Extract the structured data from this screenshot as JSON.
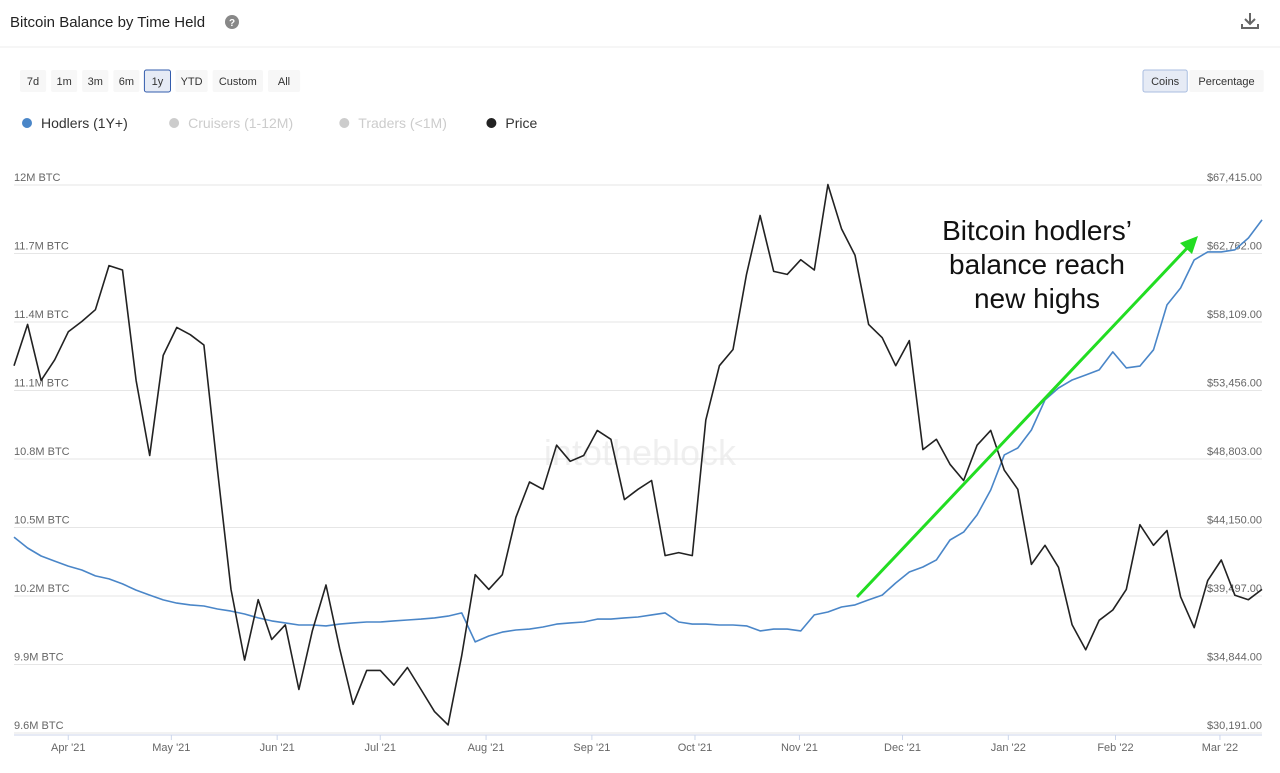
{
  "header": {
    "title": "Bitcoin Balance by Time Held"
  },
  "range_buttons": [
    {
      "label": "7d"
    },
    {
      "label": "1m"
    },
    {
      "label": "3m"
    },
    {
      "label": "6m"
    },
    {
      "label": "1y",
      "active": true
    },
    {
      "label": "YTD"
    },
    {
      "label": "Custom"
    },
    {
      "label": "All"
    }
  ],
  "unit_toggle": [
    {
      "label": "Coins",
      "active": true
    },
    {
      "label": "Percentage"
    }
  ],
  "chart_data": {
    "type": "line",
    "watermark": "intotheblock",
    "annotation": {
      "lines": [
        "Bitcoin hodlers’",
        "balance reach",
        "new highs"
      ]
    },
    "xlim": [
      0,
      92
    ],
    "xticks": [
      {
        "value": 4,
        "label": "Apr '21"
      },
      {
        "value": 11.6,
        "label": "May '21"
      },
      {
        "value": 19.4,
        "label": "Jun '21"
      },
      {
        "value": 27,
        "label": "Jul '21"
      },
      {
        "value": 34.8,
        "label": "Aug '21"
      },
      {
        "value": 42.6,
        "label": "Sep '21"
      },
      {
        "value": 50.2,
        "label": "Oct '21"
      },
      {
        "value": 57.9,
        "label": "Nov '21"
      },
      {
        "value": 65.5,
        "label": "Dec '21"
      },
      {
        "value": 73.3,
        "label": "Jan '22"
      },
      {
        "value": 81.2,
        "label": "Feb '22"
      },
      {
        "value": 88.9,
        "label": "Mar '22"
      }
    ],
    "ylim": [
      9600000,
      12000000
    ],
    "yticks": [
      {
        "value": 9600000,
        "label": "9.6M BTC"
      },
      {
        "value": 9900000,
        "label": "9.9M BTC"
      },
      {
        "value": 10200000,
        "label": "10.2M BTC"
      },
      {
        "value": 10500000,
        "label": "10.5M BTC"
      },
      {
        "value": 10800000,
        "label": "10.8M BTC"
      },
      {
        "value": 11100000,
        "label": "11.1M BTC"
      },
      {
        "value": 11400000,
        "label": "11.4M BTC"
      },
      {
        "value": 11700000,
        "label": "11.7M BTC"
      },
      {
        "value": 12000000,
        "label": "12M BTC"
      }
    ],
    "y2lim": [
      30191,
      67415
    ],
    "y2ticks": [
      {
        "value": 30191,
        "label": "$30,191.00"
      },
      {
        "value": 34844,
        "label": "$34,844.00"
      },
      {
        "value": 39497,
        "label": "$39,497.00"
      },
      {
        "value": 44150,
        "label": "$44,150.00"
      },
      {
        "value": 48803,
        "label": "$48,803.00"
      },
      {
        "value": 53456,
        "label": "$53,456.00"
      },
      {
        "value": 58109,
        "label": "$58,109.00"
      },
      {
        "value": 62762,
        "label": "$62,762.00"
      },
      {
        "value": 67415,
        "label": "$67,415.00"
      }
    ],
    "grid": true,
    "series": [
      {
        "name": "Hodlers (1Y+)",
        "color": "#4a86c8",
        "visible": true,
        "values": [
          10423000,
          10375000,
          10340000,
          10318000,
          10296000,
          10279000,
          10253000,
          10240000,
          10218000,
          10191000,
          10169000,
          10148000,
          10134000,
          10126000,
          10121000,
          10108000,
          10099000,
          10086000,
          10069000,
          10056000,
          10047000,
          10038000,
          10038000,
          10034000,
          10042000,
          10047000,
          10051000,
          10051000,
          10056000,
          10060000,
          10064000,
          10069000,
          10077000,
          10091000,
          9964000,
          9990000,
          10007000,
          10016000,
          10020000,
          10029000,
          10042000,
          10047000,
          10051000,
          10064000,
          10064000,
          10069000,
          10073000,
          10082000,
          10091000,
          10051000,
          10042000,
          10042000,
          10038000,
          10038000,
          10034000,
          10012000,
          10020000,
          10020000,
          10012000,
          10082000,
          10095000,
          10117000,
          10126000,
          10148000,
          10169000,
          10222000,
          10270000,
          10292000,
          10323000,
          10410000,
          10445000,
          10520000,
          10629000,
          10783000,
          10813000,
          10892000,
          11024000,
          11076000,
          11111000,
          11133000,
          11155000,
          11234000,
          11164000,
          11172000,
          11243000,
          11440000,
          11514000,
          11637000,
          11672000,
          11672000,
          11681000,
          11733000,
          11812000
        ]
      },
      {
        "name": "Cruisers (1-12M)",
        "color": "#cccccc",
        "visible": false
      },
      {
        "name": "Traders (<1M)",
        "color": "#cccccc",
        "visible": false
      },
      {
        "name": "Price",
        "color": "#222222",
        "visible": true,
        "axis": "y2",
        "values": [
          54600,
          57400,
          53600,
          55000,
          56900,
          57600,
          58400,
          61400,
          61100,
          53600,
          48500,
          55300,
          57200,
          56700,
          56000,
          47500,
          39400,
          34600,
          38700,
          36000,
          37000,
          32600,
          36600,
          39700,
          35400,
          31600,
          33900,
          33900,
          32900,
          34100,
          32600,
          31100,
          30200,
          34900,
          40400,
          39400,
          40400,
          44300,
          46700,
          46200,
          49200,
          48100,
          48500,
          50200,
          49600,
          45500,
          46200,
          46800,
          41700,
          41900,
          41700,
          50900,
          54600,
          55700,
          60800,
          64800,
          61000,
          60800,
          61800,
          61100,
          66900,
          63900,
          62100,
          57400,
          56500,
          54600,
          56300,
          48900,
          49600,
          47900,
          46800,
          49200,
          50200,
          47500,
          46200,
          41100,
          42400,
          40900,
          37000,
          35300,
          37300,
          38000,
          39400,
          43800,
          42400,
          43400,
          38900,
          36800,
          40000,
          41400,
          39000,
          38700,
          39400
        ]
      }
    ]
  }
}
